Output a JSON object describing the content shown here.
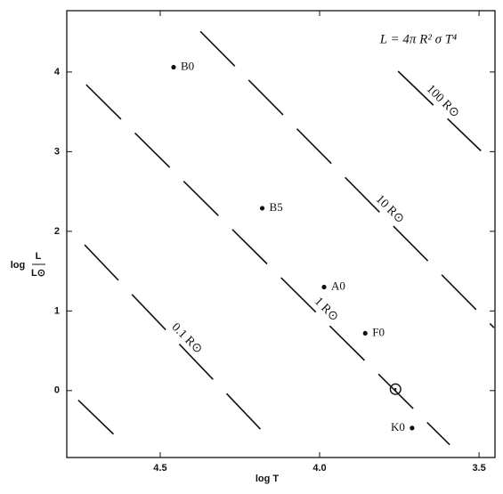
{
  "chart_data": {
    "type": "scatter",
    "formula": "L = 4π R² σ T⁴",
    "x_label": "log T",
    "y_label": {
      "prefix": "log",
      "numerator": "L",
      "denominator": "L⊙"
    },
    "xlim": [
      4.793,
      3.45
    ],
    "ylim": [
      -0.84,
      4.77
    ],
    "xticks": [
      4.5,
      {
        "value": 4,
        "label": "4.0"
      },
      3.5
    ],
    "yticks": [
      0,
      1,
      2,
      3,
      4
    ],
    "color": "#111111",
    "points": [
      {
        "label": "B0",
        "x": 4.458,
        "y": 4.06
      },
      {
        "label": "B5",
        "x": 4.18,
        "y": 2.29
      },
      {
        "label": "A0",
        "x": 3.986,
        "y": 1.3
      },
      {
        "label": "F0",
        "x": 3.857,
        "y": 0.72
      },
      {
        "label": "K0",
        "x": 3.71,
        "y": -0.47
      }
    ],
    "sun": {
      "label": "⊙",
      "x": 3.762,
      "y": 0.01
    },
    "lines": [
      {
        "x": [
          4.757,
          4.612
        ],
        "values": [
          -0.12,
          -0.68
        ]
      },
      {
        "name": "0.1 R⊙",
        "x": [
          4.737,
          4.165
        ],
        "values": [
          1.83,
          -0.57
        ]
      },
      {
        "name": "1 R⊙",
        "x": [
          4.732,
          3.592
        ],
        "values": [
          3.84,
          -0.68
        ]
      },
      {
        "name": "10 R⊙",
        "x": [
          4.374,
          3.453
        ],
        "values": [
          4.51,
          0.79
        ]
      },
      {
        "name": "100 R⊙",
        "x": [
          3.754,
          3.494
        ],
        "values": [
          4.01,
          3.01
        ]
      }
    ]
  }
}
